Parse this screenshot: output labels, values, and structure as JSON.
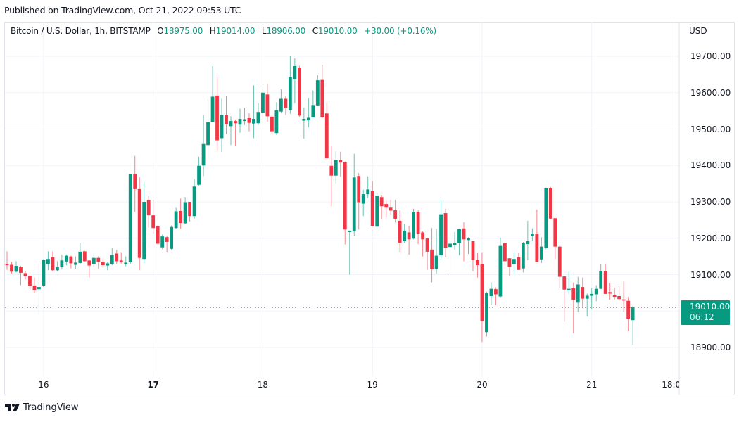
{
  "header": {
    "published": "Published on TradingView.com, Oct 21, 2022 09:53 UTC"
  },
  "legend": {
    "symbol": "Bitcoin / U.S. Dollar, 1h, BITSTAMP",
    "o_label": "O",
    "o_value": "18975.00",
    "h_label": "H",
    "h_value": "19014.00",
    "l_label": "L",
    "l_value": "18906.00",
    "c_label": "C",
    "c_value": "19010.00",
    "change": "+30.00 (+0.16%)"
  },
  "price_axis": {
    "currency": "USD"
  },
  "last_price_tag": {
    "price": "19010.00",
    "countdown": "06:12"
  },
  "branding": {
    "logo_text": "TradingView",
    "icon": "tradingview-logo-icon"
  },
  "colors": {
    "up": "#089981",
    "down": "#f23645",
    "grid": "#f0f3fa",
    "text": "#131722"
  },
  "chart_data": {
    "type": "candlestick",
    "interval": "1h",
    "first_candle": "2022-10-15T16:00",
    "ylim": [
      18800,
      19800
    ],
    "grid": true,
    "y_ticks": [
      "19700.00",
      "19600.00",
      "19500.00",
      "19400.00",
      "19300.00",
      "19200.00",
      "19100.00",
      "18900.00"
    ],
    "x_ticks": [
      {
        "label": "16",
        "time": "2022-10-16T00:00",
        "bold": false
      },
      {
        "label": "17",
        "time": "2022-10-17T00:00",
        "bold": true
      },
      {
        "label": "18",
        "time": "2022-10-18T00:00",
        "bold": false
      },
      {
        "label": "19",
        "time": "2022-10-19T00:00",
        "bold": false
      },
      {
        "label": "20",
        "time": "2022-10-20T00:00",
        "bold": false
      },
      {
        "label": "21",
        "time": "2022-10-21T00:00",
        "bold": false
      },
      {
        "label": "18:00",
        "time": "2022-10-21T18:00",
        "bold": false
      }
    ],
    "last_price": 19010,
    "ohlc": [
      [
        19129,
        19164,
        19113,
        19126
      ],
      [
        19127,
        19135,
        19103,
        19108
      ],
      [
        19108,
        19137,
        19106,
        19124
      ],
      [
        19121,
        19124,
        19071,
        19105
      ],
      [
        19104,
        19110,
        19087,
        19096
      ],
      [
        19097,
        19099,
        19060,
        19069
      ],
      [
        19070,
        19092,
        19050,
        19057
      ],
      [
        19060,
        19129,
        18989,
        19066
      ],
      [
        19070,
        19143,
        19066,
        19141
      ],
      [
        19130,
        19164,
        19112,
        19143
      ],
      [
        19148,
        19164,
        19109,
        19112
      ],
      [
        19112,
        19137,
        19109,
        19122
      ],
      [
        19121,
        19155,
        19114,
        19139
      ],
      [
        19136,
        19155,
        19126,
        19152
      ],
      [
        19150,
        19152,
        19117,
        19131
      ],
      [
        19127,
        19150,
        19116,
        19133
      ],
      [
        19132,
        19187,
        19130,
        19163
      ],
      [
        19164,
        19165,
        19136,
        19137
      ],
      [
        19139,
        19140,
        19092,
        19125
      ],
      [
        19128,
        19155,
        19121,
        19146
      ],
      [
        19146,
        19150,
        19116,
        19135
      ],
      [
        19135,
        19144,
        19123,
        19126
      ],
      [
        19125,
        19135,
        19112,
        19131
      ],
      [
        19128,
        19174,
        19126,
        19154
      ],
      [
        19158,
        19168,
        19128,
        19137
      ],
      [
        19139,
        19160,
        19131,
        19134
      ],
      [
        19130,
        19150,
        19123,
        19133
      ],
      [
        19134,
        19376,
        19130,
        19376
      ],
      [
        19376,
        19426,
        19272,
        19335
      ],
      [
        19335,
        19368,
        19112,
        19146
      ],
      [
        19143,
        19355,
        19131,
        19300
      ],
      [
        19305,
        19316,
        19229,
        19263
      ],
      [
        19263,
        19306,
        19213,
        19228
      ],
      [
        19234,
        19236,
        19184,
        19185
      ],
      [
        19175,
        19210,
        19170,
        19205
      ],
      [
        19203,
        19206,
        19161,
        19190
      ],
      [
        19171,
        19235,
        19167,
        19231
      ],
      [
        19228,
        19284,
        19226,
        19274
      ],
      [
        19275,
        19309,
        19226,
        19242
      ],
      [
        19241,
        19313,
        19239,
        19299
      ],
      [
        19300,
        19300,
        19246,
        19261
      ],
      [
        19261,
        19363,
        19254,
        19342
      ],
      [
        19347,
        19424,
        19345,
        19399
      ],
      [
        19400,
        19539,
        19371,
        19459
      ],
      [
        19456,
        19583,
        19421,
        19519
      ],
      [
        19519,
        19673,
        19519,
        19589
      ],
      [
        19592,
        19643,
        19442,
        19469
      ],
      [
        19475,
        19583,
        19437,
        19539
      ],
      [
        19539,
        19592,
        19486,
        19513
      ],
      [
        19508,
        19535,
        19456,
        19522
      ],
      [
        19522,
        19526,
        19453,
        19516
      ],
      [
        19512,
        19556,
        19490,
        19528
      ],
      [
        19522,
        19558,
        19511,
        19527
      ],
      [
        19530,
        19544,
        19494,
        19517
      ],
      [
        19515,
        19620,
        19475,
        19528
      ],
      [
        19516,
        19571,
        19511,
        19547
      ],
      [
        19545,
        19617,
        19517,
        19600
      ],
      [
        19595,
        19624,
        19520,
        19535
      ],
      [
        19534,
        19540,
        19487,
        19494
      ],
      [
        19489,
        19574,
        19484,
        19552
      ],
      [
        19548,
        19609,
        19544,
        19583
      ],
      [
        19583,
        19590,
        19539,
        19557
      ],
      [
        19553,
        19700,
        19542,
        19643
      ],
      [
        19637,
        19694,
        19571,
        19673
      ],
      [
        19669,
        19674,
        19532,
        19537
      ],
      [
        19523,
        19559,
        19474,
        19528
      ],
      [
        19524,
        19585,
        19505,
        19531
      ],
      [
        19532,
        19606,
        19532,
        19566
      ],
      [
        19565,
        19648,
        19565,
        19634
      ],
      [
        19635,
        19677,
        19530,
        19532
      ],
      [
        19543,
        19572,
        19418,
        19420
      ],
      [
        19399,
        19454,
        19288,
        19372
      ],
      [
        19372,
        19438,
        19350,
        19415
      ],
      [
        19415,
        19438,
        19369,
        19408
      ],
      [
        19409,
        19411,
        19183,
        19224
      ],
      [
        19217,
        19221,
        19100,
        19221
      ],
      [
        19219,
        19432,
        19206,
        19367
      ],
      [
        19371,
        19379,
        19224,
        19299
      ],
      [
        19295,
        19333,
        19261,
        19321
      ],
      [
        19321,
        19370,
        19311,
        19334
      ],
      [
        19329,
        19357,
        19232,
        19234
      ],
      [
        19232,
        19323,
        19230,
        19317
      ],
      [
        19313,
        19319,
        19252,
        19288
      ],
      [
        19294,
        19303,
        19257,
        19284
      ],
      [
        19284,
        19306,
        19264,
        19276
      ],
      [
        19277,
        19305,
        19243,
        19253
      ],
      [
        19248,
        19277,
        19161,
        19188
      ],
      [
        19192,
        19239,
        19187,
        19221
      ],
      [
        19216,
        19234,
        19155,
        19197
      ],
      [
        19199,
        19281,
        19197,
        19271
      ],
      [
        19271,
        19277,
        19184,
        19213
      ],
      [
        19216,
        19219,
        19150,
        19197
      ],
      [
        19200,
        19201,
        19113,
        19163
      ],
      [
        19169,
        19228,
        19079,
        19115
      ],
      [
        19116,
        19226,
        19103,
        19152
      ],
      [
        19153,
        19305,
        19140,
        19266
      ],
      [
        19269,
        19281,
        19148,
        19174
      ],
      [
        19176,
        19185,
        19103,
        19185
      ],
      [
        19181,
        19217,
        19169,
        19187
      ],
      [
        19186,
        19226,
        19153,
        19225
      ],
      [
        19227,
        19244,
        19137,
        19197
      ],
      [
        19195,
        19203,
        19157,
        19200
      ],
      [
        19192,
        19192,
        19109,
        19140
      ],
      [
        19140,
        19159,
        19092,
        19126
      ],
      [
        19129,
        19160,
        18915,
        18973
      ],
      [
        18942,
        19053,
        18930,
        19050
      ],
      [
        19041,
        19079,
        19017,
        19061
      ],
      [
        19060,
        19065,
        19016,
        19046
      ],
      [
        19040,
        19202,
        19036,
        19179
      ],
      [
        19186,
        19190,
        19116,
        19137
      ],
      [
        19145,
        19145,
        19097,
        19121
      ],
      [
        19128,
        19159,
        19101,
        19143
      ],
      [
        19148,
        19159,
        19113,
        19113
      ],
      [
        19117,
        19190,
        19106,
        19188
      ],
      [
        19184,
        19248,
        19140,
        19192
      ],
      [
        19206,
        19227,
        19192,
        19212
      ],
      [
        19213,
        19279,
        19135,
        19135
      ],
      [
        19142,
        19203,
        19132,
        19177
      ],
      [
        19173,
        19339,
        19170,
        19337
      ],
      [
        19337,
        19341,
        19252,
        19254
      ],
      [
        19255,
        19255,
        19143,
        19177
      ],
      [
        19177,
        19180,
        19064,
        19094
      ],
      [
        19095,
        19096,
        18971,
        19059
      ],
      [
        19057,
        19109,
        19047,
        19061
      ],
      [
        19063,
        19079,
        18939,
        19031
      ],
      [
        19023,
        19094,
        18998,
        19073
      ],
      [
        19066,
        19092,
        19008,
        19034
      ],
      [
        19034,
        19048,
        18985,
        19042
      ],
      [
        19042,
        19062,
        19004,
        19047
      ],
      [
        19046,
        19071,
        19027,
        19061
      ],
      [
        19061,
        19128,
        19061,
        19110
      ],
      [
        19110,
        19128,
        19047,
        19047
      ],
      [
        19052,
        19077,
        19031,
        19048
      ],
      [
        19045,
        19064,
        19032,
        19039
      ],
      [
        19041,
        19068,
        19030,
        19033
      ],
      [
        19032,
        19081,
        18997,
        19029
      ],
      [
        19028,
        19039,
        18945,
        18979
      ],
      [
        18975,
        19014,
        18906,
        19010
      ]
    ]
  }
}
